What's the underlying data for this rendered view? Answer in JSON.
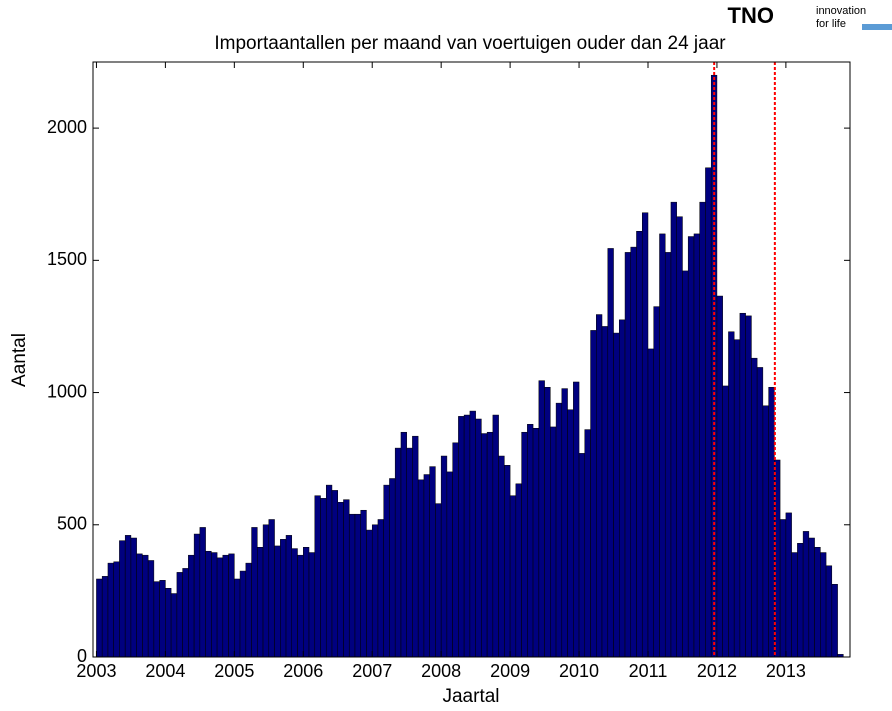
{
  "chart_data": {
    "type": "bar",
    "title": "Importaantallen  per maand van voertuigen ouder dan 24 jaar",
    "x_label": "Jaartal",
    "y_label": "Aantal",
    "x": [
      2003,
      2003.083,
      2003.167,
      2003.25,
      2003.333,
      2003.417,
      2003.5,
      2003.583,
      2003.667,
      2003.75,
      2003.833,
      2003.917,
      2004,
      2004.083,
      2004.167,
      2004.25,
      2004.333,
      2004.417,
      2004.5,
      2004.583,
      2004.667,
      2004.75,
      2004.833,
      2004.917,
      2005,
      2005.083,
      2005.167,
      2005.25,
      2005.333,
      2005.417,
      2005.5,
      2005.583,
      2005.667,
      2005.75,
      2005.833,
      2005.917,
      2006,
      2006.083,
      2006.167,
      2006.25,
      2006.333,
      2006.417,
      2006.5,
      2006.583,
      2006.667,
      2006.75,
      2006.833,
      2006.917,
      2007,
      2007.083,
      2007.167,
      2007.25,
      2007.333,
      2007.417,
      2007.5,
      2007.583,
      2007.667,
      2007.75,
      2007.833,
      2007.917,
      2008,
      2008.083,
      2008.167,
      2008.25,
      2008.333,
      2008.417,
      2008.5,
      2008.583,
      2008.667,
      2008.75,
      2008.833,
      2008.917,
      2009,
      2009.083,
      2009.167,
      2009.25,
      2009.333,
      2009.417,
      2009.5,
      2009.583,
      2009.667,
      2009.75,
      2009.833,
      2009.917,
      2010,
      2010.083,
      2010.167,
      2010.25,
      2010.333,
      2010.417,
      2010.5,
      2010.583,
      2010.667,
      2010.75,
      2010.833,
      2010.917,
      2011,
      2011.083,
      2011.167,
      2011.25,
      2011.333,
      2011.417,
      2011.5,
      2011.583,
      2011.667,
      2011.75,
      2011.833,
      2011.917,
      2012,
      2012.083,
      2012.167,
      2012.25,
      2012.333,
      2012.417,
      2012.5,
      2012.583,
      2012.667,
      2012.75,
      2012.833,
      2012.917,
      2013,
      2013.083,
      2013.167,
      2013.25,
      2013.333,
      2013.417,
      2013.5,
      2013.583,
      2013.667,
      2013.75
    ],
    "values": [
      295,
      305,
      355,
      360,
      440,
      460,
      450,
      390,
      385,
      365,
      285,
      290,
      260,
      240,
      320,
      335,
      385,
      465,
      490,
      400,
      395,
      375,
      385,
      390,
      295,
      325,
      355,
      490,
      415,
      500,
      520,
      420,
      445,
      460,
      410,
      385,
      415,
      395,
      610,
      600,
      650,
      630,
      585,
      595,
      540,
      540,
      555,
      480,
      500,
      520,
      650,
      675,
      790,
      850,
      790,
      835,
      670,
      690,
      720,
      580,
      760,
      700,
      810,
      910,
      915,
      930,
      900,
      845,
      850,
      915,
      760,
      725,
      610,
      655,
      850,
      880,
      865,
      1045,
      1020,
      870,
      960,
      1015,
      935,
      1040,
      770,
      860,
      1235,
      1295,
      1250,
      1545,
      1225,
      1275,
      1530,
      1550,
      1610,
      1680,
      1165,
      1325,
      1600,
      1530,
      1720,
      1665,
      1460,
      1590,
      1600,
      1720,
      1850,
      2200,
      1365,
      1025,
      1230,
      1200,
      1300,
      1290,
      1130,
      1095,
      950,
      1020,
      745,
      520,
      545,
      395,
      430,
      475,
      450,
      415,
      395,
      345,
      275,
      10
    ],
    "color": "#00007f",
    "vlines": [
      2011.96,
      2012.84
    ],
    "vline_color": "#ff0000",
    "xlim": [
      2002.95,
      2013.93
    ],
    "xticks": [
      2003,
      2004,
      2005,
      2006,
      2007,
      2008,
      2009,
      2010,
      2011,
      2012,
      2013
    ],
    "ylim": [
      0,
      2250
    ],
    "yticks": [
      0,
      500,
      1000,
      1500,
      2000
    ],
    "grid": false
  },
  "logo": {
    "name": "TNO",
    "tagline": [
      "innovation",
      "for life"
    ]
  }
}
